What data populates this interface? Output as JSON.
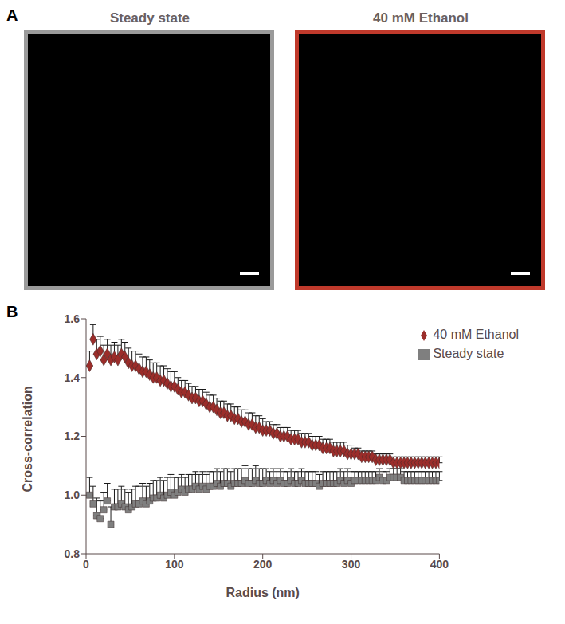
{
  "figure": {
    "panels": [
      {
        "label": "A",
        "images": [
          {
            "title": "Steady state",
            "border_color": "#9a9a9a"
          },
          {
            "title": "40 mM Ethanol",
            "border_color": "#c0392b"
          }
        ]
      },
      {
        "label": "B"
      }
    ]
  },
  "chart_data": {
    "type": "scatter",
    "x_label": "Radius (nm)",
    "y_label": "Cross-correlation",
    "xlim": [
      0,
      400
    ],
    "xticks": [
      0,
      100,
      200,
      300,
      400
    ],
    "ylim": [
      0.8,
      1.6
    ],
    "yticks": [
      0.8,
      {
        "value": 1,
        "label": "1.0"
      },
      1.2,
      1.4,
      1.6
    ],
    "legend": "upper right",
    "grid": false,
    "x": [
      4,
      8,
      12,
      16,
      20,
      24,
      28,
      32,
      36,
      40,
      44,
      48,
      52,
      56,
      60,
      64,
      68,
      72,
      76,
      80,
      84,
      88,
      92,
      96,
      100,
      104,
      108,
      112,
      116,
      120,
      124,
      128,
      132,
      136,
      140,
      144,
      148,
      152,
      156,
      160,
      164,
      168,
      172,
      176,
      180,
      184,
      188,
      192,
      196,
      200,
      204,
      208,
      212,
      216,
      220,
      224,
      228,
      232,
      236,
      240,
      244,
      248,
      252,
      256,
      260,
      264,
      268,
      272,
      276,
      280,
      284,
      288,
      292,
      296,
      300,
      304,
      308,
      312,
      316,
      320,
      324,
      328,
      332,
      336,
      340,
      344,
      348,
      352,
      356,
      360,
      364,
      368,
      372,
      376,
      380,
      384,
      388,
      392,
      396,
      400
    ],
    "series": [
      {
        "name": "Steady state",
        "color": "#7f7f7f",
        "marker": "square",
        "values": [
          1.0,
          0.97,
          0.93,
          0.92,
          0.95,
          0.98,
          0.9,
          0.96,
          0.96,
          0.97,
          0.96,
          0.95,
          0.96,
          0.97,
          0.97,
          0.98,
          0.97,
          0.98,
          0.99,
          0.99,
          1.0,
          0.99,
          1.0,
          1.01,
          1.0,
          1.01,
          1.02,
          1.01,
          1.02,
          1.02,
          1.03,
          1.02,
          1.03,
          1.02,
          1.03,
          1.03,
          1.04,
          1.03,
          1.04,
          1.04,
          1.03,
          1.04,
          1.04,
          1.04,
          1.05,
          1.04,
          1.04,
          1.05,
          1.04,
          1.04,
          1.05,
          1.04,
          1.05,
          1.04,
          1.05,
          1.04,
          1.04,
          1.05,
          1.04,
          1.04,
          1.05,
          1.04,
          1.04,
          1.04,
          1.04,
          1.03,
          1.04,
          1.04,
          1.04,
          1.04,
          1.04,
          1.05,
          1.04,
          1.05,
          1.04,
          1.05,
          1.05,
          1.05,
          1.05,
          1.05,
          1.05,
          1.05,
          1.06,
          1.05,
          1.05,
          1.06,
          1.06,
          1.06,
          1.06,
          1.05,
          1.05,
          1.05,
          1.05,
          1.05,
          1.05,
          1.05,
          1.05,
          1.05,
          1.05,
          1.05
        ],
        "errors": [
          0.06,
          0.06,
          0.06,
          0.06,
          0.06,
          0.06,
          0.06,
          0.06,
          0.06,
          0.06,
          0.06,
          0.06,
          0.06,
          0.06,
          0.06,
          0.06,
          0.06,
          0.06,
          0.06,
          0.06,
          0.06,
          0.06,
          0.06,
          0.06,
          0.06,
          0.05,
          0.05,
          0.05,
          0.05,
          0.05,
          0.05,
          0.05,
          0.05,
          0.05,
          0.05,
          0.05,
          0.05,
          0.05,
          0.05,
          0.05,
          0.05,
          0.05,
          0.05,
          0.05,
          0.05,
          0.05,
          0.05,
          0.05,
          0.05,
          0.05,
          0.04,
          0.04,
          0.04,
          0.04,
          0.04,
          0.04,
          0.04,
          0.04,
          0.04,
          0.04,
          0.04,
          0.04,
          0.04,
          0.04,
          0.04,
          0.04,
          0.04,
          0.04,
          0.04,
          0.04,
          0.04,
          0.04,
          0.04,
          0.04,
          0.04,
          0.03,
          0.03,
          0.03,
          0.03,
          0.03,
          0.03,
          0.03,
          0.03,
          0.03,
          0.03,
          0.03,
          0.03,
          0.03,
          0.03,
          0.03,
          0.03,
          0.03,
          0.03,
          0.03,
          0.03,
          0.03,
          0.03,
          0.03,
          0.03,
          0.03
        ]
      },
      {
        "name": "40 mM Ethanol",
        "color": "#9b2d2a",
        "marker": "diamond",
        "values": [
          1.44,
          1.53,
          1.48,
          1.49,
          1.46,
          1.48,
          1.46,
          1.47,
          1.46,
          1.48,
          1.47,
          1.45,
          1.44,
          1.44,
          1.43,
          1.42,
          1.42,
          1.41,
          1.4,
          1.4,
          1.39,
          1.39,
          1.38,
          1.37,
          1.37,
          1.36,
          1.35,
          1.35,
          1.34,
          1.33,
          1.33,
          1.32,
          1.32,
          1.31,
          1.3,
          1.3,
          1.29,
          1.28,
          1.28,
          1.27,
          1.27,
          1.26,
          1.26,
          1.25,
          1.25,
          1.24,
          1.24,
          1.23,
          1.23,
          1.22,
          1.22,
          1.22,
          1.21,
          1.21,
          1.2,
          1.2,
          1.2,
          1.19,
          1.19,
          1.19,
          1.18,
          1.18,
          1.18,
          1.17,
          1.17,
          1.17,
          1.16,
          1.16,
          1.16,
          1.15,
          1.15,
          1.15,
          1.15,
          1.14,
          1.14,
          1.14,
          1.14,
          1.13,
          1.13,
          1.13,
          1.13,
          1.12,
          1.12,
          1.12,
          1.12,
          1.12,
          1.11,
          1.11,
          1.11,
          1.11,
          1.11,
          1.11,
          1.11,
          1.11,
          1.11,
          1.11,
          1.11,
          1.11,
          1.11,
          1.11
        ],
        "errors": [
          0.05,
          0.05,
          0.05,
          0.05,
          0.05,
          0.05,
          0.05,
          0.05,
          0.05,
          0.05,
          0.05,
          0.05,
          0.05,
          0.05,
          0.05,
          0.05,
          0.05,
          0.05,
          0.05,
          0.05,
          0.05,
          0.05,
          0.05,
          0.05,
          0.05,
          0.04,
          0.04,
          0.04,
          0.04,
          0.04,
          0.04,
          0.04,
          0.04,
          0.04,
          0.04,
          0.04,
          0.04,
          0.04,
          0.04,
          0.04,
          0.04,
          0.04,
          0.04,
          0.04,
          0.04,
          0.04,
          0.04,
          0.04,
          0.04,
          0.04,
          0.03,
          0.03,
          0.03,
          0.03,
          0.03,
          0.03,
          0.03,
          0.03,
          0.03,
          0.03,
          0.03,
          0.03,
          0.03,
          0.03,
          0.03,
          0.03,
          0.03,
          0.03,
          0.03,
          0.03,
          0.03,
          0.03,
          0.03,
          0.03,
          0.03,
          0.02,
          0.02,
          0.02,
          0.02,
          0.02,
          0.02,
          0.02,
          0.02,
          0.02,
          0.02,
          0.02,
          0.02,
          0.02,
          0.02,
          0.02,
          0.02,
          0.02,
          0.02,
          0.02,
          0.02,
          0.02,
          0.02,
          0.02,
          0.02,
          0.02
        ]
      }
    ]
  }
}
